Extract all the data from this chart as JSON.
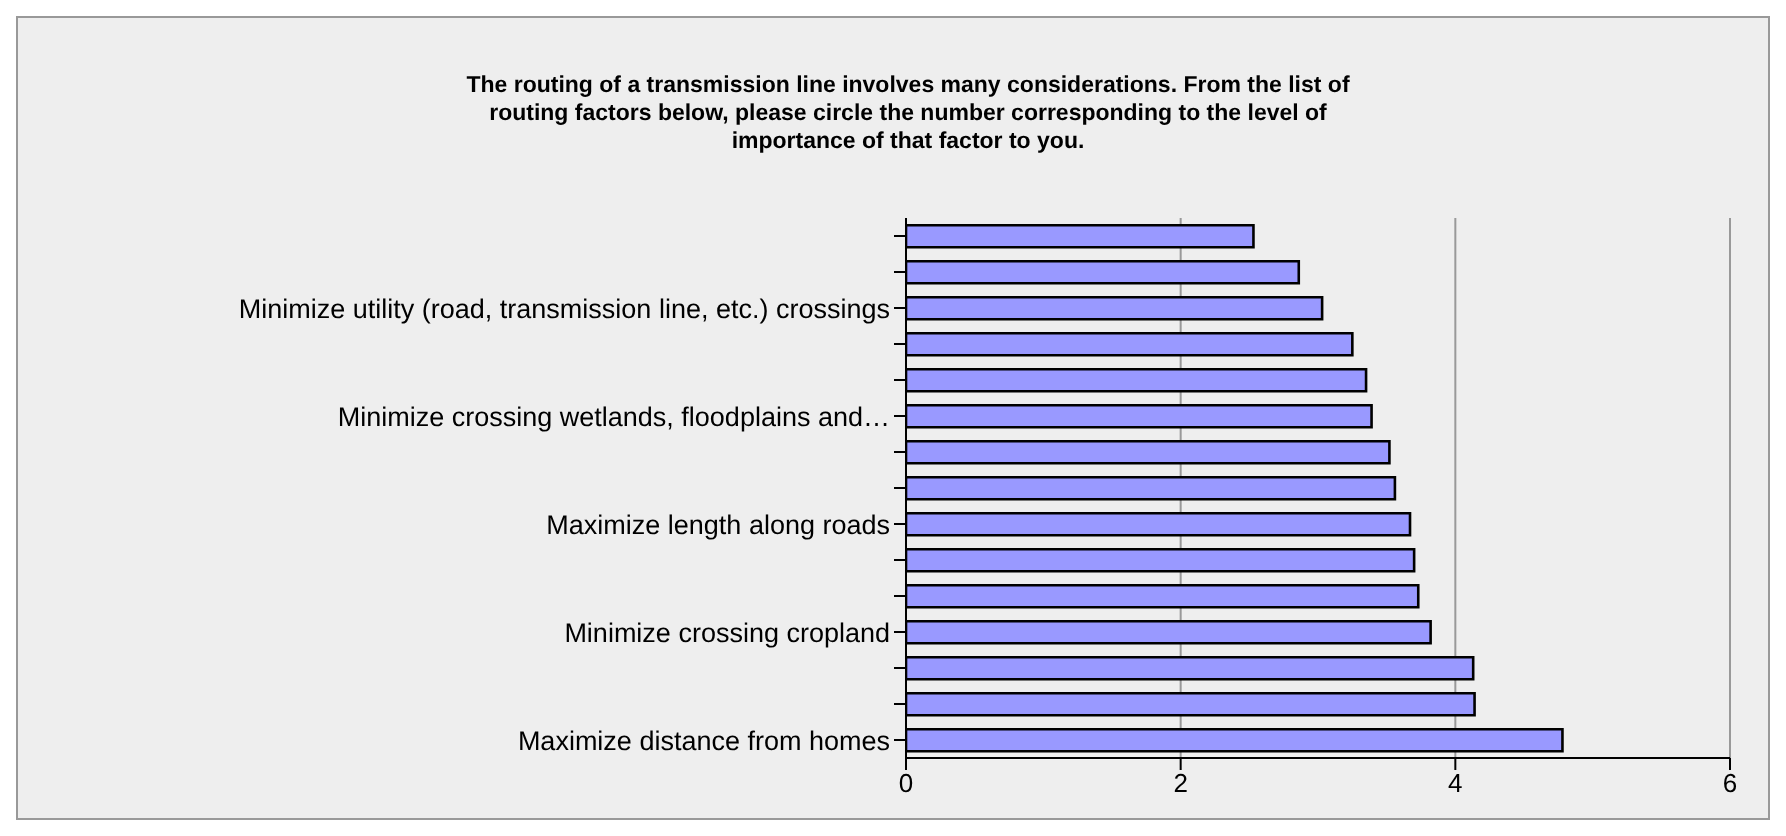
{
  "chart_data": {
    "type": "bar",
    "orientation": "horizontal",
    "title": "The routing of a transmission line involves many considerations. From the list of routing factors below, please circle the number corresponding to the level of importance of that factor to you.",
    "categories": [
      null,
      null,
      "Minimize utility (road, transmission line, etc.) crossings",
      null,
      null,
      "Minimize crossing wetlands, floodplains and…",
      null,
      null,
      "Maximize length along roads",
      null,
      null,
      "Minimize crossing cropland",
      null,
      null,
      "Maximize distance from homes"
    ],
    "values": [
      2.53,
      2.86,
      3.03,
      3.25,
      3.35,
      3.39,
      3.52,
      3.56,
      3.67,
      3.7,
      3.73,
      3.82,
      4.13,
      4.14,
      4.78
    ],
    "color": "#9999ff",
    "xlim": [
      0,
      6
    ],
    "xticks": [
      0,
      2,
      4,
      6
    ],
    "grid": "x"
  }
}
